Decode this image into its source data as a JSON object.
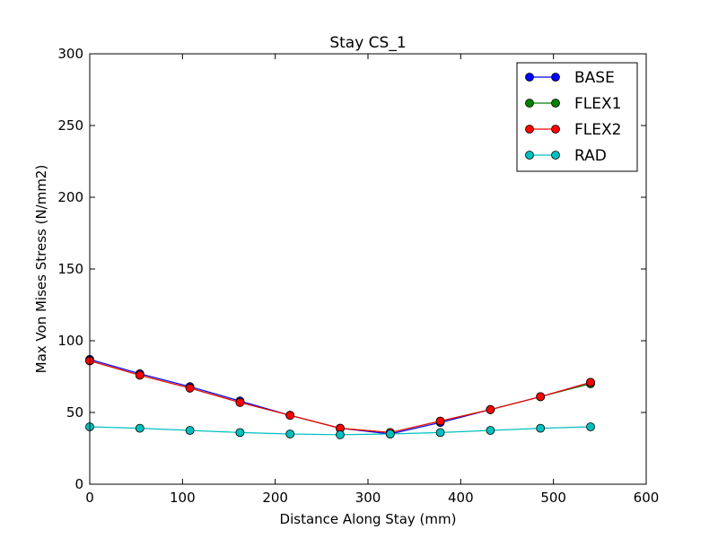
{
  "chart_data": {
    "type": "line",
    "title": "Stay CS_1",
    "xlabel": "Distance Along Stay (mm)",
    "ylabel": "Max Von Mises Stress (N/mm2)",
    "xlim": [
      0,
      600
    ],
    "ylim": [
      0,
      300
    ],
    "xticks": [
      "0",
      "100",
      "200",
      "300",
      "400",
      "500",
      "600"
    ],
    "yticks": [
      "0",
      "50",
      "100",
      "150",
      "200",
      "250",
      "300"
    ],
    "grid": false,
    "legend_position": "top-right",
    "x": [
      0,
      54,
      108,
      162,
      216,
      270,
      324,
      378,
      432,
      486,
      540
    ],
    "series": [
      {
        "name": "BASE",
        "color": "#0000ff",
        "values": [
          87,
          77,
          68,
          58,
          48,
          39,
          35,
          43,
          52,
          61,
          71
        ]
      },
      {
        "name": "FLEX1",
        "color": "#008000",
        "values": [
          86,
          76,
          67,
          57,
          48,
          39,
          36,
          44,
          52,
          61,
          70
        ]
      },
      {
        "name": "FLEX2",
        "color": "#ff0000",
        "values": [
          86,
          76,
          67,
          57,
          48,
          39,
          36,
          44,
          52,
          61,
          71
        ]
      },
      {
        "name": "RAD",
        "color": "#00bfbf",
        "values": [
          40,
          39,
          37.5,
          36,
          35,
          34.5,
          35,
          36,
          37.5,
          39,
          40
        ]
      }
    ]
  }
}
